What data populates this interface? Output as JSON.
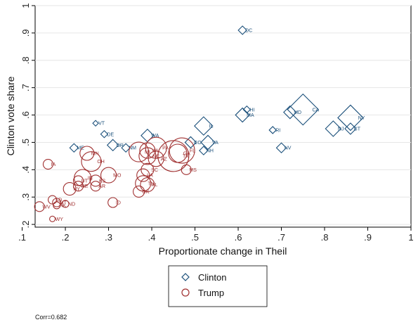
{
  "chart_data": {
    "type": "scatter",
    "xlabel": "Proportionate change in Theil",
    "ylabel": "Clinton vote share",
    "xlim": [
      0.13,
      1.0
    ],
    "ylim": [
      0.19,
      1.0
    ],
    "xticks": [
      ".1",
      ".2",
      ".3",
      ".4",
      ".5",
      ".6",
      ".7",
      ".8",
      ".9",
      "1"
    ],
    "yticks": [
      ".2",
      ".3",
      ".4",
      ".5",
      ".6",
      ".7",
      ".8",
      ".9",
      "1"
    ],
    "grid": true,
    "legend_position": "bottom",
    "annotation": "Corr=0.682",
    "colors": {
      "Clinton": "#1a4f7a",
      "Trump": "#a03030"
    },
    "series": [
      {
        "name": "Clinton",
        "marker": "diamond",
        "points": [
          {
            "label": "DC",
            "x": 0.61,
            "y": 0.91,
            "size": 6
          },
          {
            "label": "CA",
            "x": 0.75,
            "y": 0.62,
            "size": 22
          },
          {
            "label": "NY",
            "x": 0.86,
            "y": 0.59,
            "size": 18
          },
          {
            "label": "CT",
            "x": 0.86,
            "y": 0.55,
            "size": 8
          },
          {
            "label": "NJ",
            "x": 0.82,
            "y": 0.55,
            "size": 11
          },
          {
            "label": "MD",
            "x": 0.72,
            "y": 0.61,
            "size": 9
          },
          {
            "label": "HI",
            "x": 0.62,
            "y": 0.62,
            "size": 5
          },
          {
            "label": "MA",
            "x": 0.61,
            "y": 0.6,
            "size": 10
          },
          {
            "label": "RI",
            "x": 0.68,
            "y": 0.545,
            "size": 5
          },
          {
            "label": "NV",
            "x": 0.7,
            "y": 0.48,
            "size": 7
          },
          {
            "label": "IL",
            "x": 0.52,
            "y": 0.56,
            "size": 13
          },
          {
            "label": "VA",
            "x": 0.53,
            "y": 0.5,
            "size": 10
          },
          {
            "label": "NH",
            "x": 0.52,
            "y": 0.47,
            "size": 6
          },
          {
            "label": "CO",
            "x": 0.49,
            "y": 0.5,
            "size": 8
          },
          {
            "label": "WA",
            "x": 0.39,
            "y": 0.525,
            "size": 9
          },
          {
            "label": "DE",
            "x": 0.29,
            "y": 0.53,
            "size": 5
          },
          {
            "label": "VT",
            "x": 0.27,
            "y": 0.57,
            "size": 4
          },
          {
            "label": "OR",
            "x": 0.31,
            "y": 0.49,
            "size": 8
          },
          {
            "label": "NM",
            "x": 0.34,
            "y": 0.48,
            "size": 6
          },
          {
            "label": "ME",
            "x": 0.22,
            "y": 0.48,
            "size": 6
          }
        ]
      },
      {
        "name": "Trump",
        "marker": "circle",
        "points": [
          {
            "label": "TX",
            "x": 0.45,
            "y": 0.45,
            "size": 22
          },
          {
            "label": "FL",
            "x": 0.47,
            "y": 0.47,
            "size": 18
          },
          {
            "label": "PA",
            "x": 0.41,
            "y": 0.48,
            "size": 15
          },
          {
            "label": "GA",
            "x": 0.46,
            "y": 0.46,
            "size": 13
          },
          {
            "label": "NC",
            "x": 0.39,
            "y": 0.45,
            "size": 12
          },
          {
            "label": "AZ",
            "x": 0.41,
            "y": 0.44,
            "size": 11
          },
          {
            "label": "MI",
            "x": 0.37,
            "y": 0.465,
            "size": 14
          },
          {
            "label": "WI",
            "x": 0.39,
            "y": 0.47,
            "size": 11
          },
          {
            "label": "MN",
            "x": 0.25,
            "y": 0.46,
            "size": 10
          },
          {
            "label": "OH",
            "x": 0.26,
            "y": 0.43,
            "size": 14
          },
          {
            "label": "IA",
            "x": 0.16,
            "y": 0.42,
            "size": 7
          },
          {
            "label": "SC",
            "x": 0.39,
            "y": 0.4,
            "size": 9
          },
          {
            "label": "MS",
            "x": 0.48,
            "y": 0.4,
            "size": 7
          },
          {
            "label": "MO",
            "x": 0.3,
            "y": 0.38,
            "size": 11
          },
          {
            "label": "IN",
            "x": 0.24,
            "y": 0.37,
            "size": 12
          },
          {
            "label": "LA",
            "x": 0.38,
            "y": 0.38,
            "size": 9
          },
          {
            "label": "TN",
            "x": 0.38,
            "y": 0.35,
            "size": 11
          },
          {
            "label": "AL",
            "x": 0.39,
            "y": 0.345,
            "size": 10
          },
          {
            "label": "KS",
            "x": 0.27,
            "y": 0.36,
            "size": 8
          },
          {
            "label": "AR",
            "x": 0.27,
            "y": 0.34,
            "size": 7
          },
          {
            "label": "UT",
            "x": 0.23,
            "y": 0.36,
            "size": 7
          },
          {
            "label": "KY",
            "x": 0.21,
            "y": 0.33,
            "size": 9
          },
          {
            "label": "OK",
            "x": 0.37,
            "y": 0.32,
            "size": 8
          },
          {
            "label": "NE",
            "x": 0.23,
            "y": 0.34,
            "size": 7
          },
          {
            "label": "ID",
            "x": 0.31,
            "y": 0.28,
            "size": 7
          },
          {
            "label": "SD",
            "x": 0.17,
            "y": 0.29,
            "size": 6
          },
          {
            "label": "MT",
            "x": 0.18,
            "y": 0.28,
            "size": 6
          },
          {
            "label": "ND",
            "x": 0.2,
            "y": 0.275,
            "size": 5
          },
          {
            "label": "WV",
            "x": 0.14,
            "y": 0.265,
            "size": 7
          },
          {
            "label": "AK",
            "x": 0.18,
            "y": 0.27,
            "size": 5
          },
          {
            "label": "WY",
            "x": 0.17,
            "y": 0.22,
            "size": 4
          }
        ]
      }
    ]
  }
}
